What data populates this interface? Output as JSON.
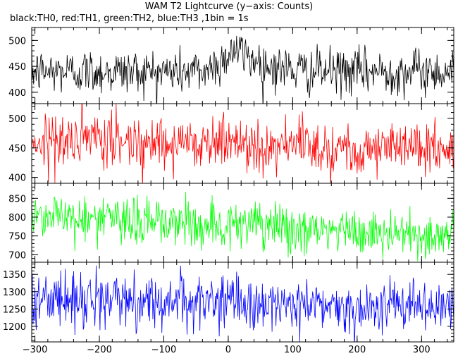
{
  "title": "WAM T2 Lightcurve (y−axis: Counts)",
  "subtitle": "black:TH0, red:TH1, green:TH2, blue:TH3 ,1bin = 1s",
  "chart_data": [
    {
      "type": "line",
      "series": [
        {
          "name": "TH0",
          "color": "#000000"
        }
      ],
      "xlim": [
        -305,
        350
      ],
      "ylim": [
        378,
        525
      ],
      "x_ticks": [
        -300,
        -200,
        -100,
        0,
        100,
        200,
        300
      ],
      "y_ticks": [
        400,
        450,
        500
      ],
      "y_tick_labels": [
        "400",
        "450",
        "500"
      ],
      "profile": [
        [
          -300,
          440
        ],
        [
          -150,
          440
        ],
        [
          -40,
          440
        ],
        [
          -10,
          460
        ],
        [
          5,
          482
        ],
        [
          30,
          470
        ],
        [
          60,
          450
        ],
        [
          120,
          440
        ],
        [
          350,
          440
        ]
      ],
      "noise": 22,
      "grid": false
    },
    {
      "type": "line",
      "series": [
        {
          "name": "TH1",
          "color": "#ff0000"
        }
      ],
      "xlim": [
        -305,
        350
      ],
      "ylim": [
        390,
        525
      ],
      "x_ticks": [
        -300,
        -200,
        -100,
        0,
        100,
        200,
        300
      ],
      "y_ticks": [
        400,
        450,
        500
      ],
      "y_tick_labels": [
        "400",
        "450",
        "500"
      ],
      "profile": [
        [
          -300,
          462
        ],
        [
          0,
          460
        ],
        [
          60,
          455
        ],
        [
          200,
          450
        ],
        [
          350,
          450
        ]
      ],
      "noise": 23,
      "grid": false
    },
    {
      "type": "line",
      "series": [
        {
          "name": "TH2",
          "color": "#00ff00"
        }
      ],
      "xlim": [
        -305,
        350
      ],
      "ylim": [
        680,
        890
      ],
      "x_ticks": [
        -300,
        -200,
        -100,
        0,
        100,
        200,
        300
      ],
      "y_ticks": [
        700,
        750,
        800,
        850
      ],
      "y_tick_labels": [
        "700",
        "750",
        "800",
        "850"
      ],
      "profile": [
        [
          -300,
          808
        ],
        [
          -200,
          795
        ],
        [
          -100,
          785
        ],
        [
          0,
          780
        ],
        [
          100,
          768
        ],
        [
          200,
          758
        ],
        [
          300,
          752
        ],
        [
          350,
          750
        ]
      ],
      "noise": 32,
      "grid": false
    },
    {
      "type": "line",
      "series": [
        {
          "name": "TH3",
          "color": "#0000ff"
        }
      ],
      "xlim": [
        -305,
        350
      ],
      "ylim": [
        1155,
        1385
      ],
      "x_ticks": [
        -300,
        -200,
        -100,
        0,
        100,
        200,
        300
      ],
      "y_ticks": [
        1200,
        1250,
        1300,
        1350
      ],
      "y_tick_labels": [
        "1200",
        "1250",
        "1300",
        "1350"
      ],
      "profile": [
        [
          -300,
          1280
        ],
        [
          0,
          1270
        ],
        [
          100,
          1262
        ],
        [
          200,
          1258
        ],
        [
          350,
          1255
        ]
      ],
      "noise": 38,
      "grid": false
    }
  ],
  "x_tick_labels": [
    "−300",
    "−200",
    "−100",
    "0",
    "100",
    "200",
    "300"
  ]
}
